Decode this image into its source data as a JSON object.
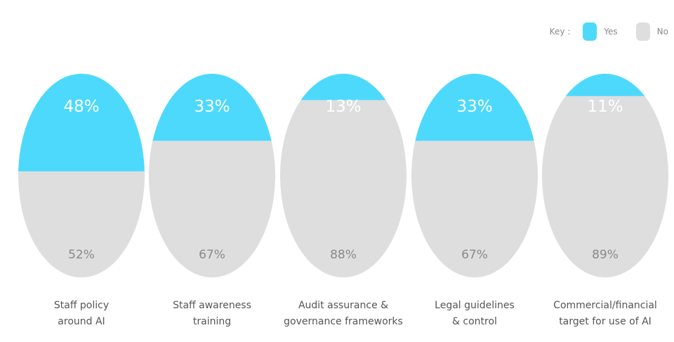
{
  "chart_data": {
    "type": "bar",
    "legend": {
      "key_label": "Key :",
      "placement": "top-right",
      "entries": [
        {
          "name": "Yes",
          "color": "#4dd9fc"
        },
        {
          "name": "No",
          "color": "#dedede"
        }
      ]
    },
    "categories": [
      [
        "Staff policy",
        "around AI"
      ],
      [
        "Staff awareness",
        "training"
      ],
      [
        "Audit assurance &",
        "governance frameworks"
      ],
      [
        "Legal guidelines",
        "& control"
      ],
      [
        "Commercial/financial",
        "target for use of AI"
      ]
    ],
    "series": [
      {
        "name": "Yes",
        "values": [
          48,
          33,
          13,
          33,
          11
        ],
        "labels": [
          "48%",
          "33%",
          "13%",
          "33%",
          "11%"
        ]
      },
      {
        "name": "No",
        "values": [
          52,
          67,
          88,
          67,
          89
        ],
        "labels": [
          "52%",
          "67%",
          "88%",
          "67%",
          "89%"
        ]
      }
    ],
    "ylim": [
      0,
      100
    ],
    "grid": false
  }
}
